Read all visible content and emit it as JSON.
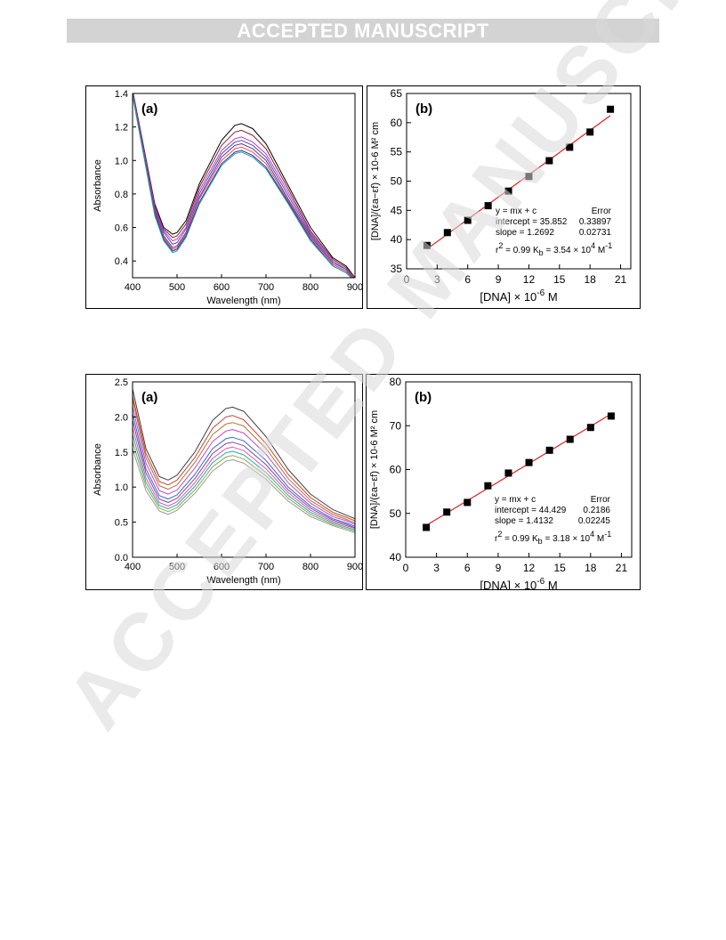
{
  "header": {
    "banner": "ACCEPTED MANUSCRIPT"
  },
  "watermark": {
    "text": "ACCEPTED MANUSCRIPT",
    "color": "#d9d9d9"
  },
  "chart_data": [
    {
      "type": "line",
      "panel_label": "(a)",
      "xlabel": "Wavelength (nm)",
      "ylabel": "Absorbance",
      "xlim": [
        400,
        900
      ],
      "ylim": [
        0.3,
        1.4
      ],
      "xticks": [
        400,
        500,
        600,
        700,
        800,
        900
      ],
      "yticks": [
        0.4,
        0.6,
        0.8,
        1.0,
        1.2,
        1.4
      ],
      "ytick_labels": [
        "0.4",
        "0.6",
        "0.8",
        "1.0",
        "1.2",
        "1.4"
      ],
      "x": [
        400,
        450,
        470,
        490,
        500,
        520,
        550,
        600,
        630,
        645,
        670,
        700,
        750,
        800,
        850,
        880,
        900
      ],
      "series": [
        {
          "color": "#000000",
          "values": [
            1.42,
            0.74,
            0.6,
            0.56,
            0.57,
            0.64,
            0.86,
            1.12,
            1.21,
            1.22,
            1.19,
            1.1,
            0.85,
            0.6,
            0.42,
            0.37,
            0.3
          ]
        },
        {
          "color": "#8b2020",
          "values": [
            1.41,
            0.73,
            0.59,
            0.54,
            0.55,
            0.62,
            0.84,
            1.09,
            1.17,
            1.18,
            1.15,
            1.07,
            0.83,
            0.58,
            0.41,
            0.36,
            0.3
          ]
        },
        {
          "color": "#cc33cc",
          "values": [
            1.41,
            0.72,
            0.58,
            0.52,
            0.53,
            0.6,
            0.82,
            1.06,
            1.13,
            1.14,
            1.11,
            1.04,
            0.81,
            0.57,
            0.4,
            0.35,
            0.29
          ]
        },
        {
          "color": "#3355cc",
          "values": [
            1.4,
            0.71,
            0.57,
            0.5,
            0.51,
            0.59,
            0.8,
            1.04,
            1.11,
            1.12,
            1.09,
            1.02,
            0.79,
            0.56,
            0.39,
            0.35,
            0.29
          ]
        },
        {
          "color": "#7a2a8a",
          "values": [
            1.4,
            0.7,
            0.55,
            0.48,
            0.49,
            0.57,
            0.78,
            1.02,
            1.09,
            1.1,
            1.07,
            1.0,
            0.77,
            0.55,
            0.38,
            0.34,
            0.29
          ]
        },
        {
          "color": "#e05050",
          "values": [
            1.4,
            0.69,
            0.54,
            0.47,
            0.48,
            0.56,
            0.77,
            1.0,
            1.07,
            1.08,
            1.05,
            0.98,
            0.76,
            0.54,
            0.38,
            0.34,
            0.28
          ]
        },
        {
          "color": "#2a2aaa",
          "values": [
            1.39,
            0.68,
            0.53,
            0.46,
            0.47,
            0.55,
            0.75,
            0.98,
            1.05,
            1.06,
            1.03,
            0.96,
            0.75,
            0.53,
            0.37,
            0.33,
            0.28
          ]
        },
        {
          "color": "#20a0a0",
          "values": [
            1.39,
            0.67,
            0.52,
            0.45,
            0.46,
            0.54,
            0.74,
            0.97,
            1.04,
            1.05,
            1.02,
            0.95,
            0.74,
            0.52,
            0.37,
            0.33,
            0.28
          ]
        }
      ]
    },
    {
      "type": "scatter",
      "panel_label": "(b)",
      "xlabel": "[DNA] × 10",
      "xlabel_sup": "-6",
      "xlabel_unit": " M",
      "ylabel": "[DNA]/(εa−εf) × 10-6 M² cm",
      "xlim": [
        0,
        22
      ],
      "ylim": [
        35,
        65
      ],
      "xticks": [
        0,
        3,
        6,
        9,
        12,
        15,
        18,
        21
      ],
      "yticks": [
        35,
        40,
        45,
        50,
        55,
        60,
        65
      ],
      "x": [
        2,
        4,
        6,
        8,
        10,
        12,
        14,
        16,
        18,
        20
      ],
      "values": [
        39.0,
        41.2,
        43.3,
        45.8,
        48.3,
        50.8,
        53.5,
        55.8,
        58.4,
        62.3
      ],
      "fit": {
        "slope": 1.2692,
        "intercept": 35.852,
        "color": "#dd2222"
      },
      "annotations": {
        "equation": "y = mx + c",
        "error_header": "Error",
        "intercept_label": "intercept = 35.852",
        "intercept_error": "0.33897",
        "slope_label": "slope = 1.2692",
        "slope_error": "0.02731",
        "r2_prefix": "r",
        "r2_exp": "2",
        "r2_rest": " = 0.99  K",
        "kb_sub": "b",
        "kb_value": " = 3.54 × 10",
        "kb_exp": "4",
        "kb_unit": " M",
        "kb_unit_exp": "-1"
      }
    },
    {
      "type": "line",
      "panel_label": "(a)",
      "xlabel": "Wavelength (nm)",
      "ylabel": "Absorbance",
      "xlim": [
        400,
        900
      ],
      "ylim": [
        0,
        2.5
      ],
      "xticks": [
        400,
        500,
        600,
        700,
        800,
        900
      ],
      "yticks": [
        0,
        0.5,
        1.0,
        1.5,
        2.0,
        2.5
      ],
      "ytick_labels": [
        "0.0",
        "0.5",
        "1.0",
        "1.5",
        "2.0",
        "2.5"
      ],
      "x": [
        400,
        430,
        460,
        480,
        500,
        540,
        580,
        610,
        625,
        650,
        700,
        750,
        800,
        850,
        880,
        900
      ],
      "series": [
        {
          "color": "#404040",
          "values": [
            2.4,
            1.55,
            1.15,
            1.1,
            1.17,
            1.5,
            1.95,
            2.12,
            2.14,
            2.08,
            1.72,
            1.25,
            0.9,
            0.68,
            0.6,
            0.55
          ]
        },
        {
          "color": "#cc4433",
          "values": [
            2.3,
            1.48,
            1.08,
            1.03,
            1.1,
            1.42,
            1.84,
            2.0,
            2.02,
            1.96,
            1.62,
            1.18,
            0.85,
            0.64,
            0.57,
            0.52
          ]
        },
        {
          "color": "#aa7733",
          "values": [
            2.25,
            1.42,
            1.02,
            0.97,
            1.03,
            1.35,
            1.75,
            1.9,
            1.92,
            1.87,
            1.55,
            1.12,
            0.81,
            0.61,
            0.54,
            0.49
          ]
        },
        {
          "color": "#cc44cc",
          "values": [
            2.15,
            1.34,
            0.95,
            0.9,
            0.96,
            1.27,
            1.65,
            1.8,
            1.82,
            1.77,
            1.47,
            1.06,
            0.77,
            0.58,
            0.52,
            0.47
          ]
        },
        {
          "color": "#3366cc",
          "values": [
            2.05,
            1.26,
            0.88,
            0.83,
            0.89,
            1.18,
            1.55,
            1.69,
            1.71,
            1.66,
            1.38,
            1.0,
            0.73,
            0.55,
            0.49,
            0.44
          ]
        },
        {
          "color": "#884499",
          "values": [
            1.95,
            1.2,
            0.83,
            0.78,
            0.84,
            1.12,
            1.48,
            1.62,
            1.64,
            1.59,
            1.32,
            0.96,
            0.7,
            0.53,
            0.47,
            0.42
          ]
        },
        {
          "color": "#dd55aa",
          "values": [
            1.85,
            1.13,
            0.78,
            0.73,
            0.79,
            1.06,
            1.41,
            1.55,
            1.57,
            1.52,
            1.26,
            0.92,
            0.67,
            0.51,
            0.45,
            0.41
          ]
        },
        {
          "color": "#22aaaa",
          "values": [
            1.75,
            1.07,
            0.74,
            0.69,
            0.75,
            1.01,
            1.35,
            1.49,
            1.51,
            1.46,
            1.21,
            0.88,
            0.64,
            0.49,
            0.43,
            0.39
          ]
        },
        {
          "color": "#88aa44",
          "values": [
            1.65,
            1.01,
            0.7,
            0.65,
            0.71,
            0.96,
            1.29,
            1.43,
            1.45,
            1.4,
            1.16,
            0.84,
            0.61,
            0.47,
            0.41,
            0.37
          ]
        },
        {
          "color": "#999999",
          "values": [
            1.55,
            0.95,
            0.66,
            0.61,
            0.67,
            0.91,
            1.23,
            1.37,
            1.39,
            1.34,
            1.11,
            0.8,
            0.58,
            0.45,
            0.39,
            0.35
          ]
        }
      ]
    },
    {
      "type": "scatter",
      "panel_label": "(b)",
      "xlabel": "[DNA] × 10",
      "xlabel_sup": "-6",
      "xlabel_unit": " M",
      "ylabel": "[DNA]/(εa−εf) × 10-6 M² cm",
      "xlim": [
        0,
        22
      ],
      "ylim": [
        40,
        80
      ],
      "xticks": [
        0,
        3,
        6,
        9,
        12,
        15,
        18,
        21
      ],
      "yticks": [
        40,
        50,
        60,
        70,
        80
      ],
      "x": [
        2,
        4,
        6,
        8,
        10,
        12,
        14,
        16,
        18,
        20
      ],
      "values": [
        46.8,
        50.3,
        52.5,
        56.3,
        59.2,
        61.6,
        64.4,
        66.9,
        69.6,
        72.2
      ],
      "fit": {
        "slope": 1.4132,
        "intercept": 44.429,
        "color": "#dd2222"
      },
      "annotations": {
        "equation": "y = mx + c",
        "error_header": "Error",
        "intercept_label": "intercept = 44.429",
        "intercept_error": "0.2186",
        "slope_label": "slope = 1.4132",
        "slope_error": "0.02245",
        "r2_prefix": "r",
        "r2_exp": "2",
        "r2_rest": " = 0.99  K",
        "kb_sub": "b",
        "kb_value": " = 3.18 × 10",
        "kb_exp": "4",
        "kb_unit": " M",
        "kb_unit_exp": "-1"
      }
    }
  ]
}
